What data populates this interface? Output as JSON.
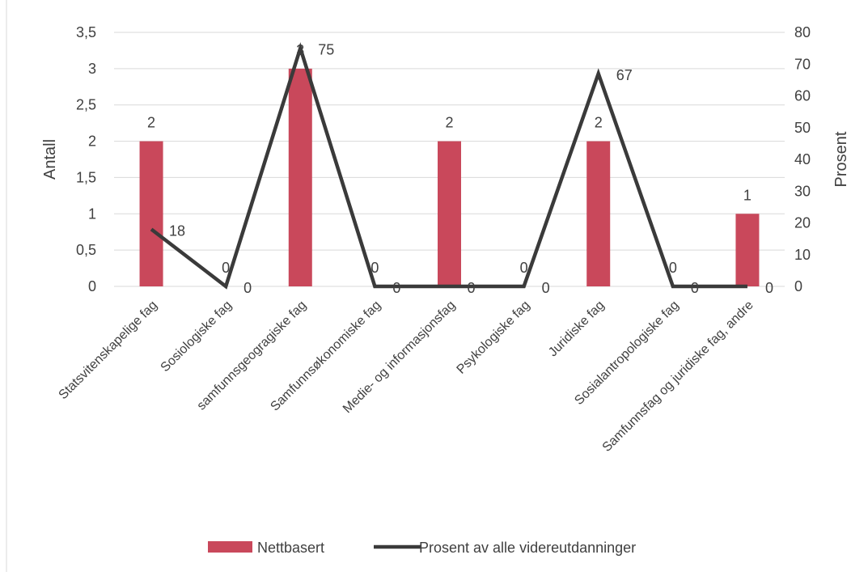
{
  "chart_data": {
    "type": "bar",
    "title": "",
    "categories": [
      "Statsvitenskapelige fag",
      "Sosiologiske fag",
      "samfunnsgeogragiske fag",
      "Samfunnsøkonomiske fag",
      "Medie- og informasjonsfag",
      "Psykologiske fag",
      "Juridiske fag",
      "Sosialantropologiske fag",
      "Samfunnsfag og juridiske fag, andre"
    ],
    "series": [
      {
        "name": "Nettbasert",
        "type": "bar",
        "axis": "left",
        "values": [
          2,
          0,
          3,
          0,
          2,
          0,
          2,
          0,
          1
        ],
        "color": "#C9485B"
      },
      {
        "name": "Prosent av alle videreutdanninger",
        "type": "line",
        "axis": "right",
        "values": [
          18,
          0,
          75,
          0,
          0,
          0,
          67,
          0,
          0
        ],
        "color": "#3A3A3A"
      }
    ],
    "ylabel": "Antall",
    "y2label": "Prosent",
    "ylim": [
      0,
      3.5
    ],
    "y2lim": [
      0,
      80
    ],
    "y_ticks": [
      "0",
      "0,5",
      "1",
      "1,5",
      "2",
      "2,5",
      "3",
      "3,5"
    ],
    "y2_ticks": [
      "0",
      "10",
      "20",
      "30",
      "40",
      "50",
      "60",
      "70",
      "80"
    ],
    "grid": true,
    "legend": "bottom"
  }
}
